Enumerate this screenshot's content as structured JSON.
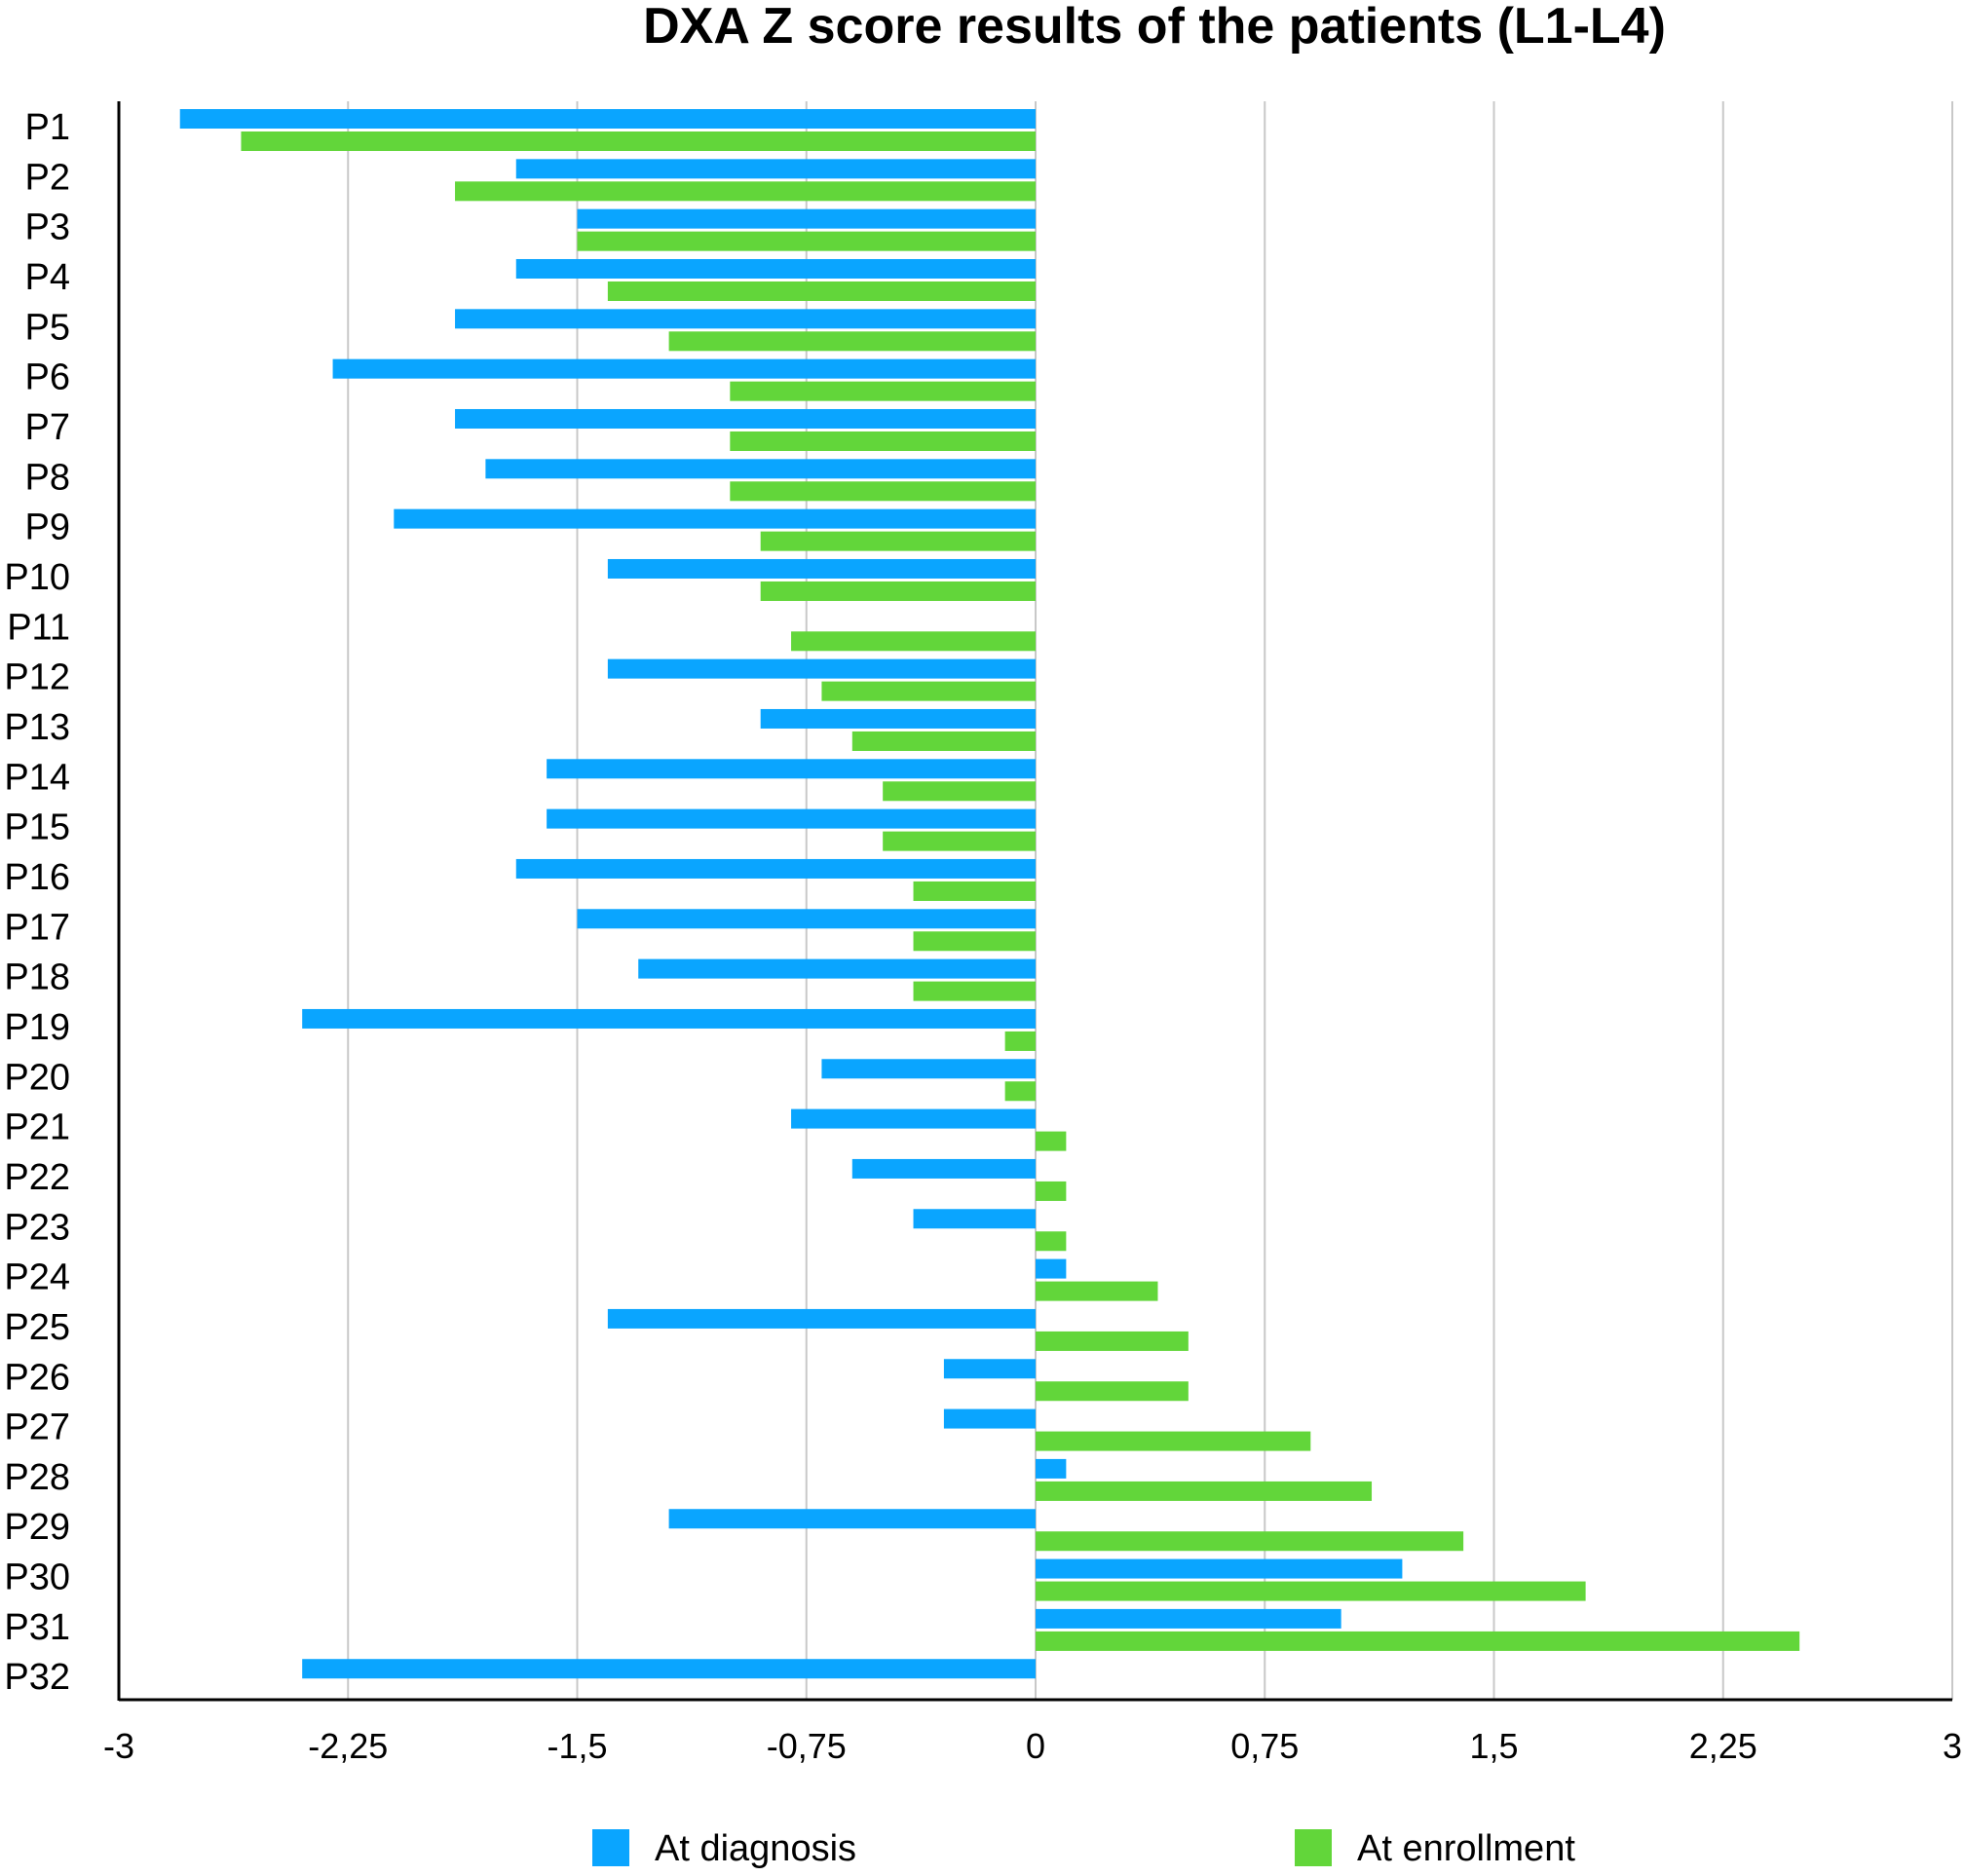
{
  "chart_data": {
    "type": "bar",
    "orientation": "horizontal",
    "title": "DXA Z score results of the patients (L1-L4)",
    "xlabel": "",
    "ylabel": "",
    "xlim": [
      -3,
      3
    ],
    "x_ticks": [
      -3,
      -2.25,
      -1.5,
      -0.75,
      0,
      0.75,
      1.5,
      2.25,
      3
    ],
    "x_tick_labels": [
      "-3",
      "-2,25",
      "-1,5",
      "-0,75",
      "0",
      "0,75",
      "1,5",
      "2,25",
      "3"
    ],
    "grid": true,
    "legend_position": "bottom",
    "categories": [
      "P1",
      "P2",
      "P3",
      "P4",
      "P5",
      "P6",
      "P7",
      "P8",
      "P9",
      "P10",
      "P11",
      "P12",
      "P13",
      "P14",
      "P15",
      "P16",
      "P17",
      "P18",
      "P19",
      "P20",
      "P21",
      "P22",
      "P23",
      "P24",
      "P25",
      "P26",
      "P27",
      "P28",
      "P29",
      "P30",
      "P31",
      "P32"
    ],
    "series": [
      {
        "name": "At diagnosis",
        "color": "#0aa5ff",
        "values": [
          -2.8,
          -1.7,
          -1.5,
          -1.7,
          -1.9,
          -2.3,
          -1.9,
          -1.8,
          -2.1,
          -1.4,
          0,
          -1.4,
          -0.9,
          -1.6,
          -1.6,
          -1.7,
          -1.5,
          -1.3,
          -2.4,
          -0.7,
          -0.8,
          -0.6,
          -0.4,
          0.1,
          -1.4,
          -0.3,
          -0.3,
          0.1,
          -1.2,
          1.2,
          1.0,
          -2.4
        ]
      },
      {
        "name": "At enrollment",
        "color": "#62d63a",
        "values": [
          -2.6,
          -1.9,
          -1.5,
          -1.4,
          -1.2,
          -1.0,
          -1.0,
          -1.0,
          -0.9,
          -0.9,
          -0.8,
          -0.7,
          -0.6,
          -0.5,
          -0.5,
          -0.4,
          -0.4,
          -0.4,
          -0.1,
          -0.1,
          0.1,
          0.1,
          0.1,
          0.4,
          0.5,
          0.5,
          0.9,
          1.1,
          1.4,
          1.8,
          2.5,
          0
        ]
      }
    ]
  }
}
